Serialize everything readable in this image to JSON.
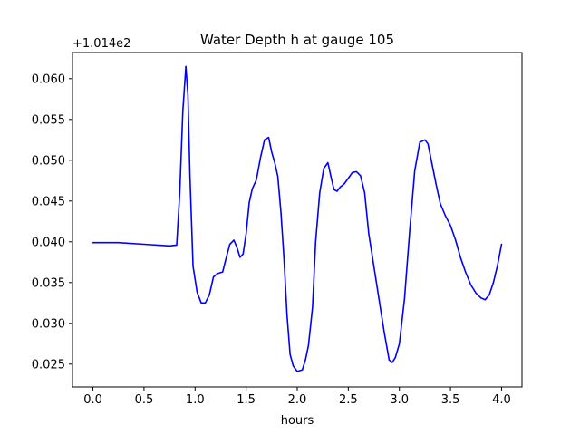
{
  "chart_data": {
    "type": "line",
    "title": "Water Depth h at gauge 105",
    "xlabel": "hours",
    "ylabel": "",
    "y_offset_label": "+1.014e2",
    "xlim": [
      -0.2,
      4.2
    ],
    "ylim": [
      0.0222,
      0.0632
    ],
    "x_ticks": [
      0.0,
      0.5,
      1.0,
      1.5,
      2.0,
      2.5,
      3.0,
      3.5,
      4.0
    ],
    "x_tick_labels": [
      "0.0",
      "0.5",
      "1.0",
      "1.5",
      "2.0",
      "2.5",
      "3.0",
      "3.5",
      "4.0"
    ],
    "y_ticks": [
      0.025,
      0.03,
      0.035,
      0.04,
      0.045,
      0.05,
      0.055,
      0.06
    ],
    "y_tick_labels": [
      "0.025",
      "0.030",
      "0.035",
      "0.040",
      "0.045",
      "0.050",
      "0.055",
      "0.060"
    ],
    "grid": false,
    "series": [
      {
        "color": "#0000ff",
        "x": [
          0.0,
          0.25,
          0.5,
          0.75,
          0.82,
          0.85,
          0.88,
          0.91,
          0.93,
          0.95,
          0.98,
          1.02,
          1.06,
          1.1,
          1.14,
          1.18,
          1.22,
          1.27,
          1.3,
          1.34,
          1.38,
          1.41,
          1.44,
          1.47,
          1.5,
          1.53,
          1.56,
          1.6,
          1.64,
          1.68,
          1.72,
          1.75,
          1.78,
          1.81,
          1.84,
          1.87,
          1.9,
          1.93,
          1.96,
          2.0,
          2.05,
          2.08,
          2.11,
          2.15,
          2.18,
          2.22,
          2.26,
          2.3,
          2.33,
          2.36,
          2.39,
          2.42,
          2.46,
          2.5,
          2.54,
          2.58,
          2.62,
          2.66,
          2.7,
          2.75,
          2.8,
          2.85,
          2.9,
          2.93,
          2.96,
          3.0,
          3.05,
          3.1,
          3.15,
          3.2,
          3.25,
          3.28,
          3.32,
          3.36,
          3.4,
          3.45,
          3.5,
          3.55,
          3.6,
          3.65,
          3.7,
          3.75,
          3.8,
          3.84,
          3.88,
          3.92,
          3.96,
          4.0
        ],
        "y": [
          0.0399,
          0.0399,
          0.0397,
          0.0395,
          0.0396,
          0.046,
          0.056,
          0.0615,
          0.058,
          0.048,
          0.037,
          0.0338,
          0.0325,
          0.0325,
          0.0335,
          0.0357,
          0.0361,
          0.0363,
          0.0378,
          0.0397,
          0.0402,
          0.0393,
          0.0381,
          0.0385,
          0.041,
          0.0448,
          0.0465,
          0.0476,
          0.0503,
          0.0525,
          0.0528,
          0.051,
          0.0497,
          0.048,
          0.0437,
          0.038,
          0.031,
          0.0262,
          0.0248,
          0.0241,
          0.0243,
          0.0255,
          0.0273,
          0.032,
          0.04,
          0.046,
          0.049,
          0.0497,
          0.048,
          0.0464,
          0.0462,
          0.0467,
          0.0471,
          0.0478,
          0.0485,
          0.0486,
          0.0481,
          0.046,
          0.041,
          0.037,
          0.033,
          0.029,
          0.0255,
          0.0252,
          0.0258,
          0.0275,
          0.033,
          0.0412,
          0.0487,
          0.0522,
          0.0525,
          0.052,
          0.0495,
          0.047,
          0.0447,
          0.0432,
          0.042,
          0.0402,
          0.038,
          0.0362,
          0.0347,
          0.0337,
          0.0331,
          0.0329,
          0.0335,
          0.035,
          0.0371,
          0.0397
        ]
      }
    ]
  }
}
